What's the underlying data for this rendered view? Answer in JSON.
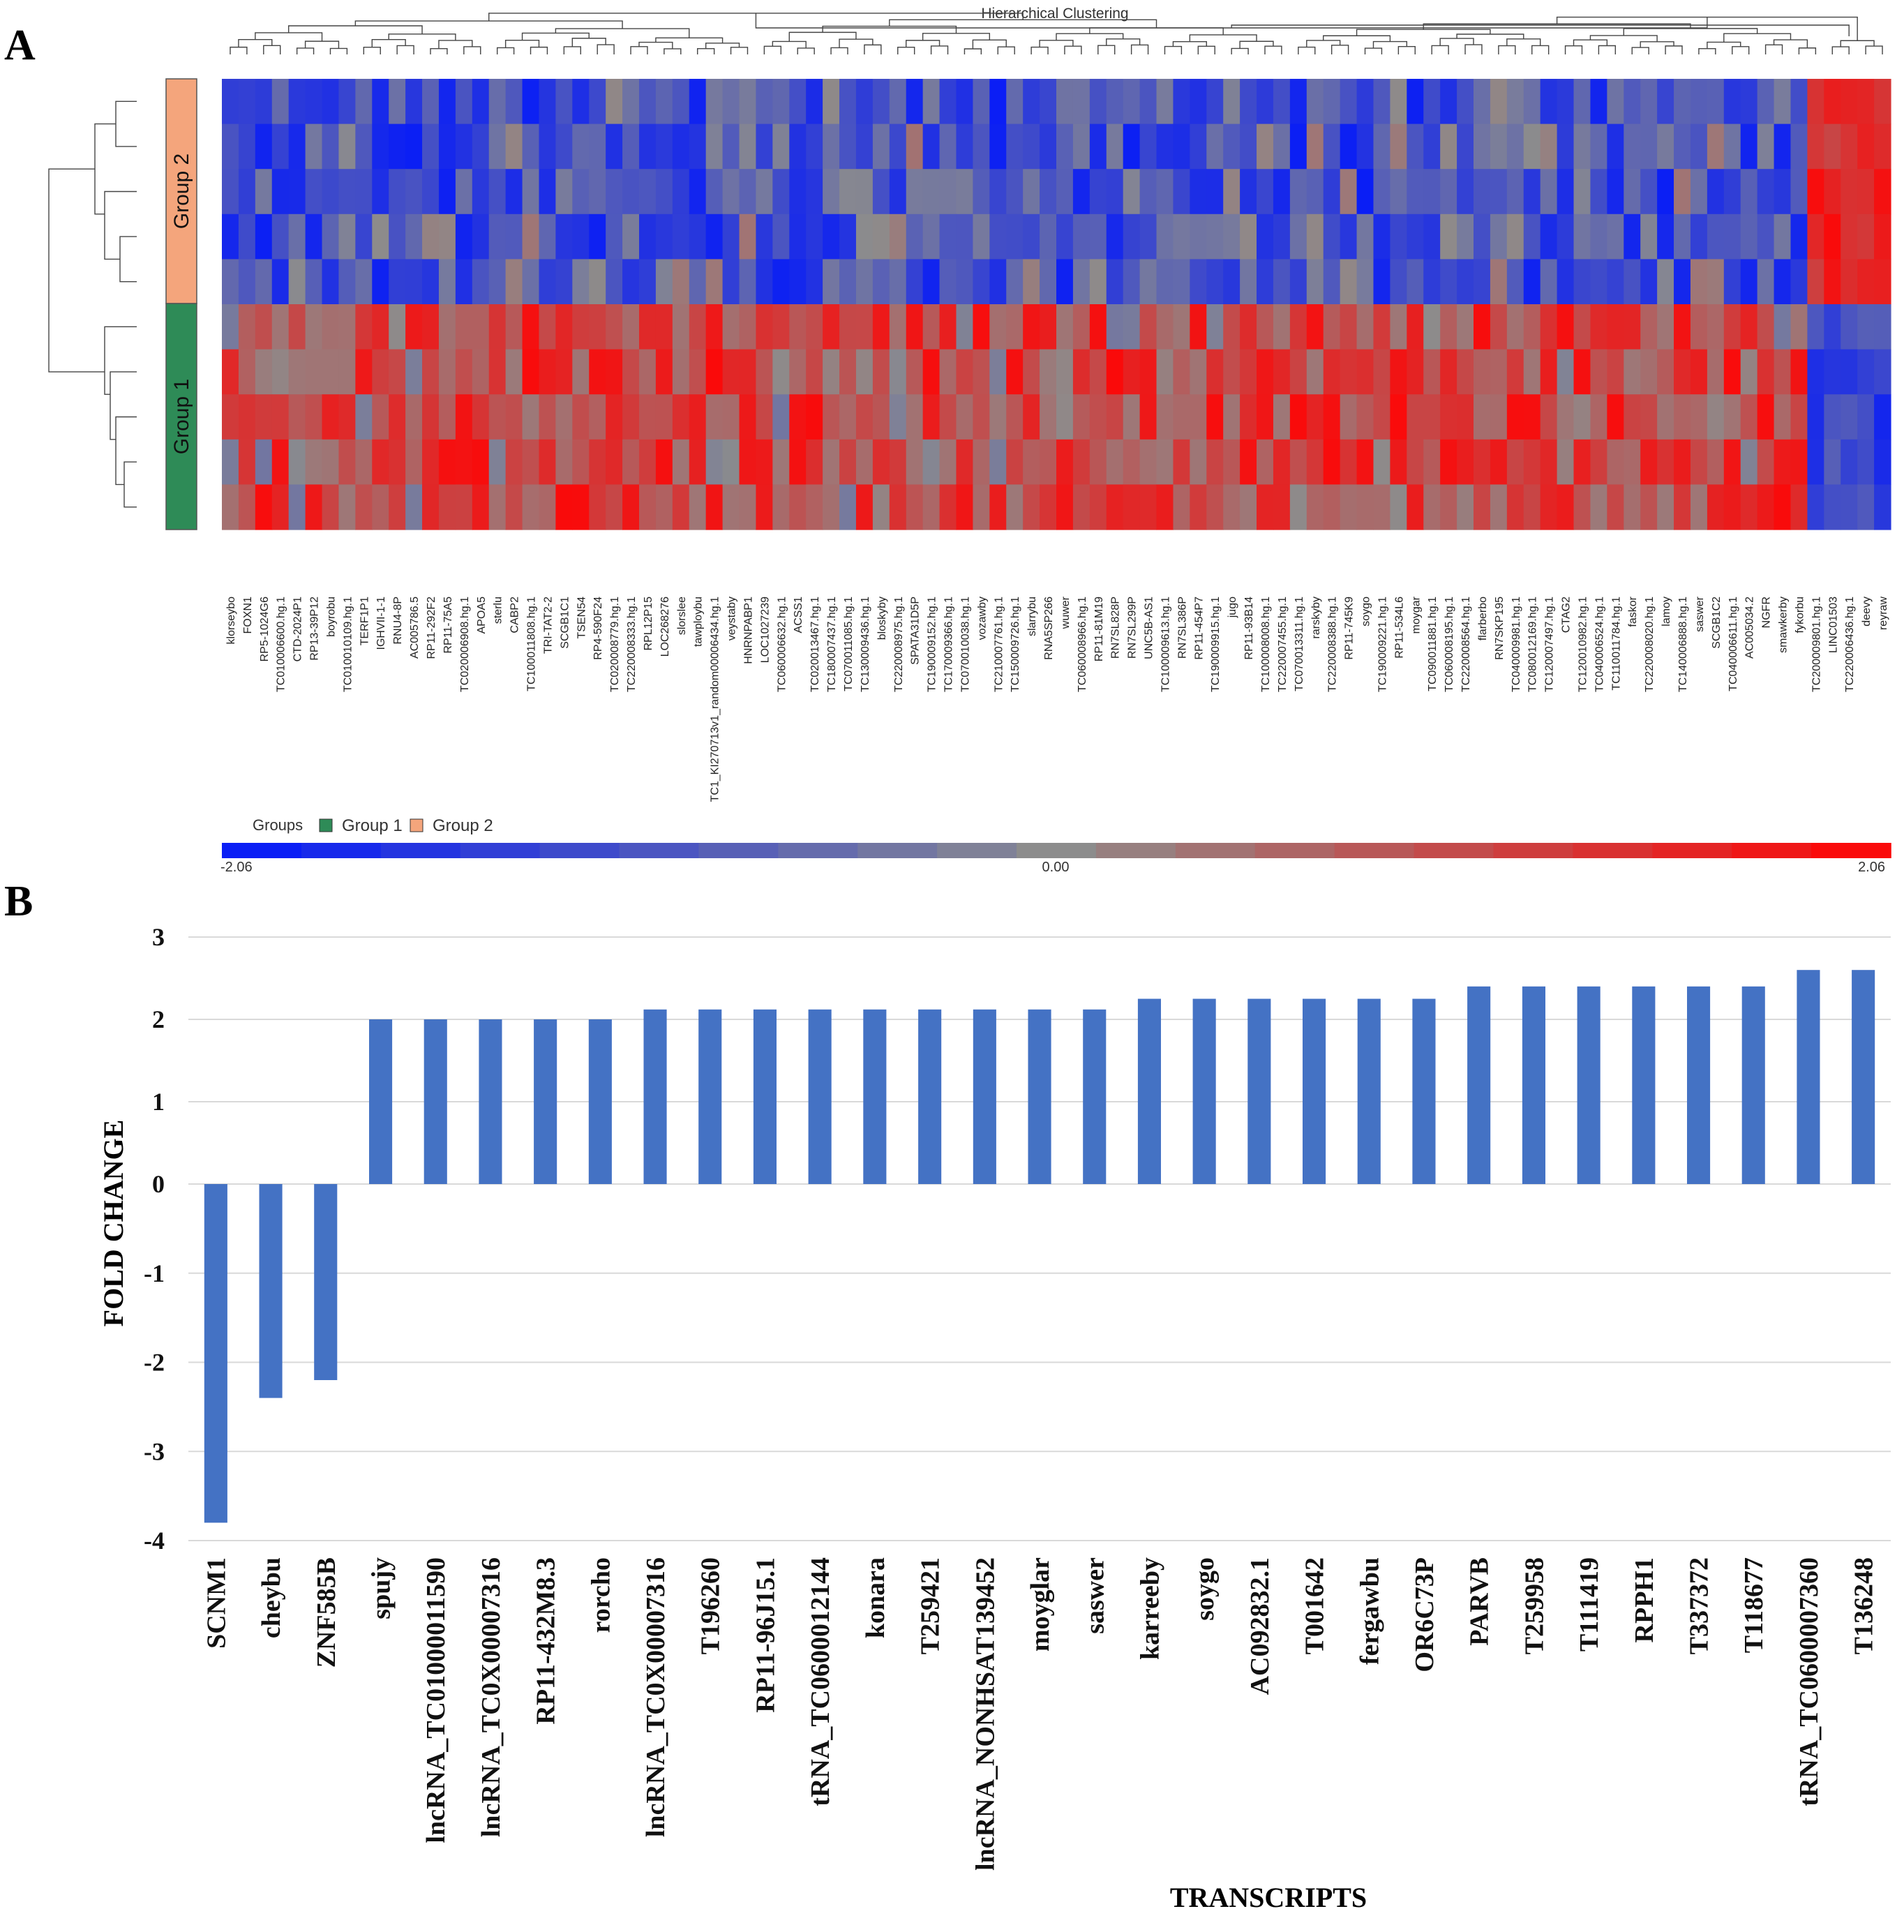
{
  "panel_a": {
    "letter": "A",
    "clustering_title": "Hierarchical Clustering",
    "groups_label": "Groups",
    "group_names": [
      "Group 2",
      "Group 1"
    ],
    "group_colors": [
      "#f4a57c",
      "#2e8b57"
    ],
    "legend_entries": [
      "Group 1",
      "Group 2"
    ],
    "scale_labels": [
      "-2.06",
      "0.00",
      "2.06"
    ],
    "colors": {
      "low": "#0a1ef5",
      "mid": "#8c8c8c",
      "high": "#fa0a0a"
    }
  },
  "panel_b": {
    "letter": "B",
    "bar_color": "#4472c4"
  },
  "chart_data": [
    {
      "type": "heatmap",
      "title": "Hierarchical Clustering",
      "rows": [
        "Group 2",
        "Group 2",
        "Group 2",
        "Group 2",
        "Group 2",
        "Group 1",
        "Group 1",
        "Group 1",
        "Group 1",
        "Group 1"
      ],
      "columns": [
        "klorseybo",
        "FOXN1",
        "RP5-1024G6",
        "TC010006600.hg.1",
        "CTD-2024P1",
        "RP13-39P12",
        "boyrobu",
        "TC010010109.hg.1",
        "TERF1P1",
        "IGHVII-1-1",
        "RNU4-8P",
        "AC005786.5",
        "RP11-292F2",
        "RP11-75A5",
        "TC020006908.hg.1",
        "APOA5",
        "sterlu",
        "CABP2",
        "TC100011808.hg.1",
        "TRI-TAT2-2",
        "SCGB1C1",
        "TSEN54",
        "RP4-590F24",
        "TC020008779.hg.1",
        "TC220008333.hg.1",
        "RPL12P15",
        "LOC268276",
        "slorslee",
        "tawploybu",
        "TC1_KI270713v1_random00006434.hg.1",
        "veystaby",
        "HNRNPABP1",
        "LOC1027239",
        "TC060006632.hg.1",
        "ACSS1",
        "TC020013467.hg.1",
        "TC180007437.hg.1",
        "TC070011085.hg.1",
        "TC130009436.hg.1",
        "bloskyby",
        "TC220008975.hg.1",
        "SPATA31D5P",
        "TC190009152.hg.1",
        "TC170009366.hg.1",
        "TC070010038.hg.1",
        "vozawby",
        "TC210007761.hg.1",
        "TC150009726.hg.1",
        "slarrybu",
        "RNA5SP266",
        "wuwer",
        "TC060008966.hg.1",
        "RP11-81M19",
        "RN7SL828P",
        "RN7SL299P",
        "UNC5B-AS1",
        "TC100009613.hg.1",
        "RN7SL386P",
        "RP11-454P7",
        "TC190009915.hg.1",
        "jugo",
        "RP11-93B14",
        "TC100008008.hg.1",
        "TC220007455.hg.1",
        "TC070013311.hg.1",
        "rarskyby",
        "TC220008388.hg.1",
        "RP11-745K9",
        "soygo",
        "TC190009221.hg.1",
        "RP11-534L6",
        "moygar",
        "TC090011881.hg.1",
        "TC060008195.hg.1",
        "TC220008564.hg.1",
        "flarberbo",
        "RN7SKP195",
        "TC040009981.hg.1",
        "TC080012169.hg.1",
        "TC120007497.hg.1",
        "CTAG2",
        "TC120010982.hg.1",
        "TC040006524.hg.1",
        "TC110011784.hg.1",
        "faskor",
        "TC220008020.hg.1",
        "lamoy",
        "TC140006888.hg.1",
        "saswer",
        "SCGB1C2",
        "TC040006611.hg.1",
        "AC005034.2",
        "NGFR",
        "smawkerby",
        "fykorbu",
        "TC200009801.hg.1",
        "LINC01503",
        "TC220006436.hg.1",
        "deevy",
        "reyraw"
      ],
      "scale": [
        -2.06,
        0.0,
        2.06
      ]
    },
    {
      "type": "bar",
      "xlabel": "TRANSCRIPTS",
      "ylabel": "FOLD CHANGE",
      "ylim": [
        -4,
        3
      ],
      "yticks": [
        -4,
        -3,
        -2,
        -1,
        0,
        1,
        2,
        3
      ],
      "grid": true,
      "categories": [
        "SCNM1",
        "cheybu",
        "ZNF585B",
        "spujy",
        "lncRNA_TC01000011590",
        "lncRNA_TC0X00007316",
        "RP11-432M8.3",
        "rorcho",
        "lncRNA_TC0X00007316",
        "T196260",
        "RP11-96J15.1",
        "tRNA_TC0600012144",
        "konara",
        "T259421",
        "lncRNA_NONHSAT139452",
        "moyglar",
        "saswer",
        "karreeby",
        "soygo",
        "AC092832.1",
        "T001642",
        "fergawbu",
        "OR6C73P",
        "PARVB",
        "T259958",
        "T111419",
        "RPPH1",
        "T337372",
        "T118677",
        "tRNA_TC0600007360",
        "T136248"
      ],
      "values": [
        -3.8,
        -2.4,
        -2.2,
        2.0,
        2.0,
        2.0,
        2.0,
        2.0,
        2.12,
        2.12,
        2.12,
        2.12,
        2.12,
        2.12,
        2.12,
        2.12,
        2.12,
        2.25,
        2.25,
        2.25,
        2.25,
        2.25,
        2.25,
        2.4,
        2.4,
        2.4,
        2.4,
        2.4,
        2.4,
        2.6,
        2.6
      ]
    }
  ]
}
